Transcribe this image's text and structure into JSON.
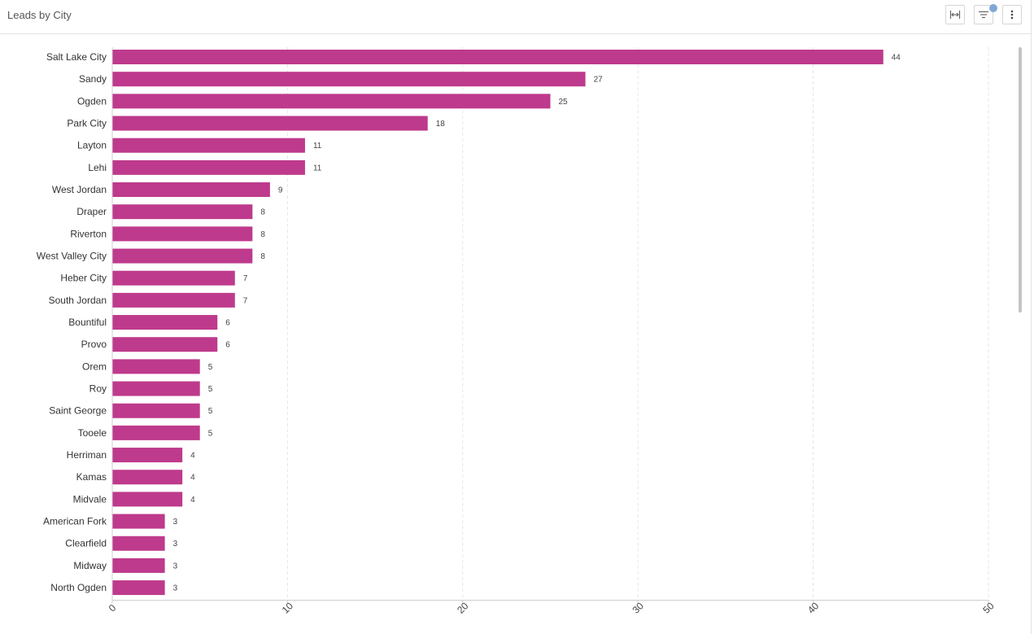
{
  "header": {
    "title": "Leads by City",
    "buttons": [
      {
        "name": "fit-width-button",
        "icon": "fit-width-icon"
      },
      {
        "name": "filter-button",
        "icon": "filter-icon"
      },
      {
        "name": "more-options-button",
        "icon": "more-vertical-icon"
      }
    ]
  },
  "colors": {
    "bar": "#be3a8c",
    "grid": "#e6e6e6",
    "axis": "#cfcfcf",
    "badge": "#7fa8d6"
  },
  "chart_data": {
    "type": "bar",
    "orientation": "horizontal",
    "title": "Leads by City",
    "xlabel": "",
    "ylabel": "",
    "xlim": [
      0,
      50
    ],
    "ticks": [
      0,
      10,
      20,
      30,
      40,
      50
    ],
    "grid": true,
    "categories": [
      "Salt Lake City",
      "Sandy",
      "Ogden",
      "Park City",
      "Layton",
      "Lehi",
      "West Jordan",
      "Draper",
      "Riverton",
      "West Valley City",
      "Heber City",
      "South Jordan",
      "Bountiful",
      "Provo",
      "Orem",
      "Roy",
      "Saint George",
      "Tooele",
      "Herriman",
      "Kamas",
      "Midvale",
      "American Fork",
      "Clearfield",
      "Midway",
      "North Ogden"
    ],
    "values": [
      44,
      27,
      25,
      18,
      11,
      11,
      9,
      8,
      8,
      8,
      7,
      7,
      6,
      6,
      5,
      5,
      5,
      5,
      4,
      4,
      4,
      3,
      3,
      3,
      3
    ]
  }
}
